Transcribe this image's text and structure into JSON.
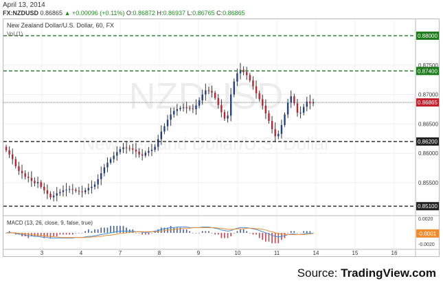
{
  "header": {
    "date": "April 13, 2014",
    "symbol": "FX:NZDUSD",
    "last": "0.86865",
    "change": "+0.00096 (+0.11%)",
    "ohlc_labels": [
      "O:",
      "H:",
      "L:",
      "C:"
    ],
    "ohlc_values": [
      "0.86872",
      "0.86937",
      "0.86765",
      "0.86865"
    ]
  },
  "footer": {
    "source_label": "Source:",
    "source_brand": "TradingView.com"
  },
  "colors": {
    "up": "#1f3f8f",
    "down": "#c0202a",
    "support_line": "#222222",
    "resistance_line": "#1d7a1d",
    "last_price": "#c0202a",
    "macd_line": "#3a8fd8",
    "signal_line": "#f08a2a"
  },
  "chart_data": [
    {
      "type": "candlestick",
      "title": "New Zealand Dollar/U.S. Dollar, 60, FX",
      "indicator_label": "Vol (1)",
      "watermark": "NZDUSD",
      "watermark_sub": "New Zealand Dollar/U.S. Dollar",
      "ylim": [
        0.8495,
        0.8828
      ],
      "y_ticks": [
        0.855,
        0.86,
        0.865,
        0.87,
        0.875
      ],
      "y_tick_labels": [
        "0.85500",
        "0.86000",
        "0.86500",
        "0.87000",
        "0.87500"
      ],
      "x_ticks": [
        "3",
        "4",
        "7",
        "8",
        "9",
        "10",
        "11",
        "14",
        "15",
        "16"
      ],
      "levels": [
        {
          "value": 0.88,
          "label": "0.88000",
          "kind": "resistance"
        },
        {
          "value": 0.874,
          "label": "0.87400",
          "kind": "resistance"
        },
        {
          "value": 0.862,
          "label": "0.86200",
          "kind": "support"
        },
        {
          "value": 0.851,
          "label": "0.85100",
          "kind": "support"
        }
      ],
      "last_price": {
        "value": 0.86865,
        "label": "0.86865"
      },
      "close_path": [
        0.8605,
        0.8598,
        0.859,
        0.8578,
        0.857,
        0.8566,
        0.856,
        0.8558,
        0.8553,
        0.8549,
        0.8551,
        0.8543,
        0.8537,
        0.8531,
        0.8525,
        0.8528,
        0.8532,
        0.8534,
        0.8537,
        0.8538,
        0.8539,
        0.8538,
        0.8536,
        0.8535,
        0.8534,
        0.8537,
        0.8541,
        0.8543,
        0.8547,
        0.8556,
        0.8566,
        0.8576,
        0.8584,
        0.859,
        0.8596,
        0.8602,
        0.8607,
        0.861,
        0.8609,
        0.8608,
        0.8606,
        0.8603,
        0.8598,
        0.8596,
        0.8601,
        0.8604,
        0.8606,
        0.8611,
        0.8624,
        0.8637,
        0.8646,
        0.8657,
        0.8666,
        0.8672,
        0.8675,
        0.8677,
        0.8678,
        0.8677,
        0.8676,
        0.8675,
        0.8681,
        0.869,
        0.87,
        0.8707,
        0.8706,
        0.8703,
        0.8694,
        0.8682,
        0.867,
        0.8659,
        0.8664,
        0.87,
        0.8722,
        0.8736,
        0.8742,
        0.8738,
        0.8733,
        0.8724,
        0.8714,
        0.8702,
        0.8692,
        0.8681,
        0.8668,
        0.8655,
        0.8641,
        0.8629,
        0.8633,
        0.8648,
        0.8666,
        0.8686,
        0.8697,
        0.8685,
        0.8669,
        0.8669,
        0.8679,
        0.8688,
        0.8685,
        0.8687
      ]
    },
    {
      "type": "macd",
      "title": "MACD (13, 26, close, 9, false, true)",
      "ylim": [
        -0.0026,
        0.0026
      ],
      "y_tick_labels": [
        "0.0020",
        "-0.0020"
      ],
      "last_value_label": "-0.0001",
      "macd": [
        0,
        0.0001,
        0,
        -0.0001,
        -0.0002,
        -0.0003,
        -0.0004,
        -0.0005,
        -0.0005,
        -0.0006,
        -0.0006,
        -0.0007,
        -0.0008,
        -0.0008,
        -0.0009,
        -0.0009,
        -0.0009,
        -0.0009,
        -0.0009,
        -0.0009,
        -0.0009,
        -0.0009,
        -0.0008,
        -0.0008,
        -0.0008,
        -0.0007,
        -0.0006,
        -0.0006,
        -0.0005,
        -0.0004,
        -0.0003,
        -0.0002,
        -0.0001,
        0,
        0.0001,
        0.0002,
        0.0003,
        0.0003,
        0.0003,
        0.0003,
        0.0003,
        0.0002,
        0.0002,
        0.0001,
        0.0001,
        0.0001,
        0.0002,
        0.0003,
        0.0004,
        0.0006,
        0.0007,
        0.0008,
        0.0009,
        0.0009,
        0.001,
        0.001,
        0.001,
        0.001,
        0.0009,
        0.0009,
        0.0009,
        0.0009,
        0.001,
        0.001,
        0.001,
        0.0009,
        0.0008,
        0.0007,
        0.0005,
        0.0004,
        0.0003,
        0.0004,
        0.0006,
        0.0008,
        0.0009,
        0.0009,
        0.0009,
        0.0008,
        0.0007,
        0.0006,
        0.0004,
        0.0002,
        0,
        -0.0002,
        -0.0004,
        -0.0006,
        -0.0007,
        -0.0006,
        -0.0005,
        -0.0003,
        -0.0002,
        -0.0002,
        -0.0003,
        -0.0003,
        -0.0002,
        -0.0001,
        -0.0001,
        -0.0001
      ],
      "signal": [
        0,
        0,
        0,
        0,
        -0.0001,
        -0.0001,
        -0.0002,
        -0.0002,
        -0.0003,
        -0.0004,
        -0.0004,
        -0.0005,
        -0.0005,
        -0.0006,
        -0.0006,
        -0.0007,
        -0.0007,
        -0.0008,
        -0.0008,
        -0.0008,
        -0.0008,
        -0.0008,
        -0.0008,
        -0.0008,
        -0.0008,
        -0.0008,
        -0.0008,
        -0.0007,
        -0.0007,
        -0.0006,
        -0.0006,
        -0.0005,
        -0.0004,
        -0.0004,
        -0.0003,
        -0.0002,
        -0.0001,
        -0.0001,
        0,
        0.0001,
        0.0001,
        0.0002,
        0.0002,
        0.0002,
        0.0002,
        0.0002,
        0.0002,
        0.0002,
        0.0002,
        0.0003,
        0.0004,
        0.0005,
        0.0005,
        0.0006,
        0.0007,
        0.0007,
        0.0008,
        0.0008,
        0.0008,
        0.0009,
        0.0009,
        0.0009,
        0.0009,
        0.0009,
        0.0009,
        0.0009,
        0.0009,
        0.0008,
        0.0008,
        0.0007,
        0.0006,
        0.0006,
        0.0006,
        0.0007,
        0.0007,
        0.0007,
        0.0008,
        0.0008,
        0.0008,
        0.0007,
        0.0007,
        0.0006,
        0.0005,
        0.0003,
        0.0002,
        0,
        -0.0001,
        -0.0002,
        -0.0002,
        -0.0003,
        -0.0003,
        -0.0003,
        -0.0003,
        -0.0003,
        -0.0003,
        -0.0002,
        -0.0002,
        -0.0001
      ]
    }
  ]
}
